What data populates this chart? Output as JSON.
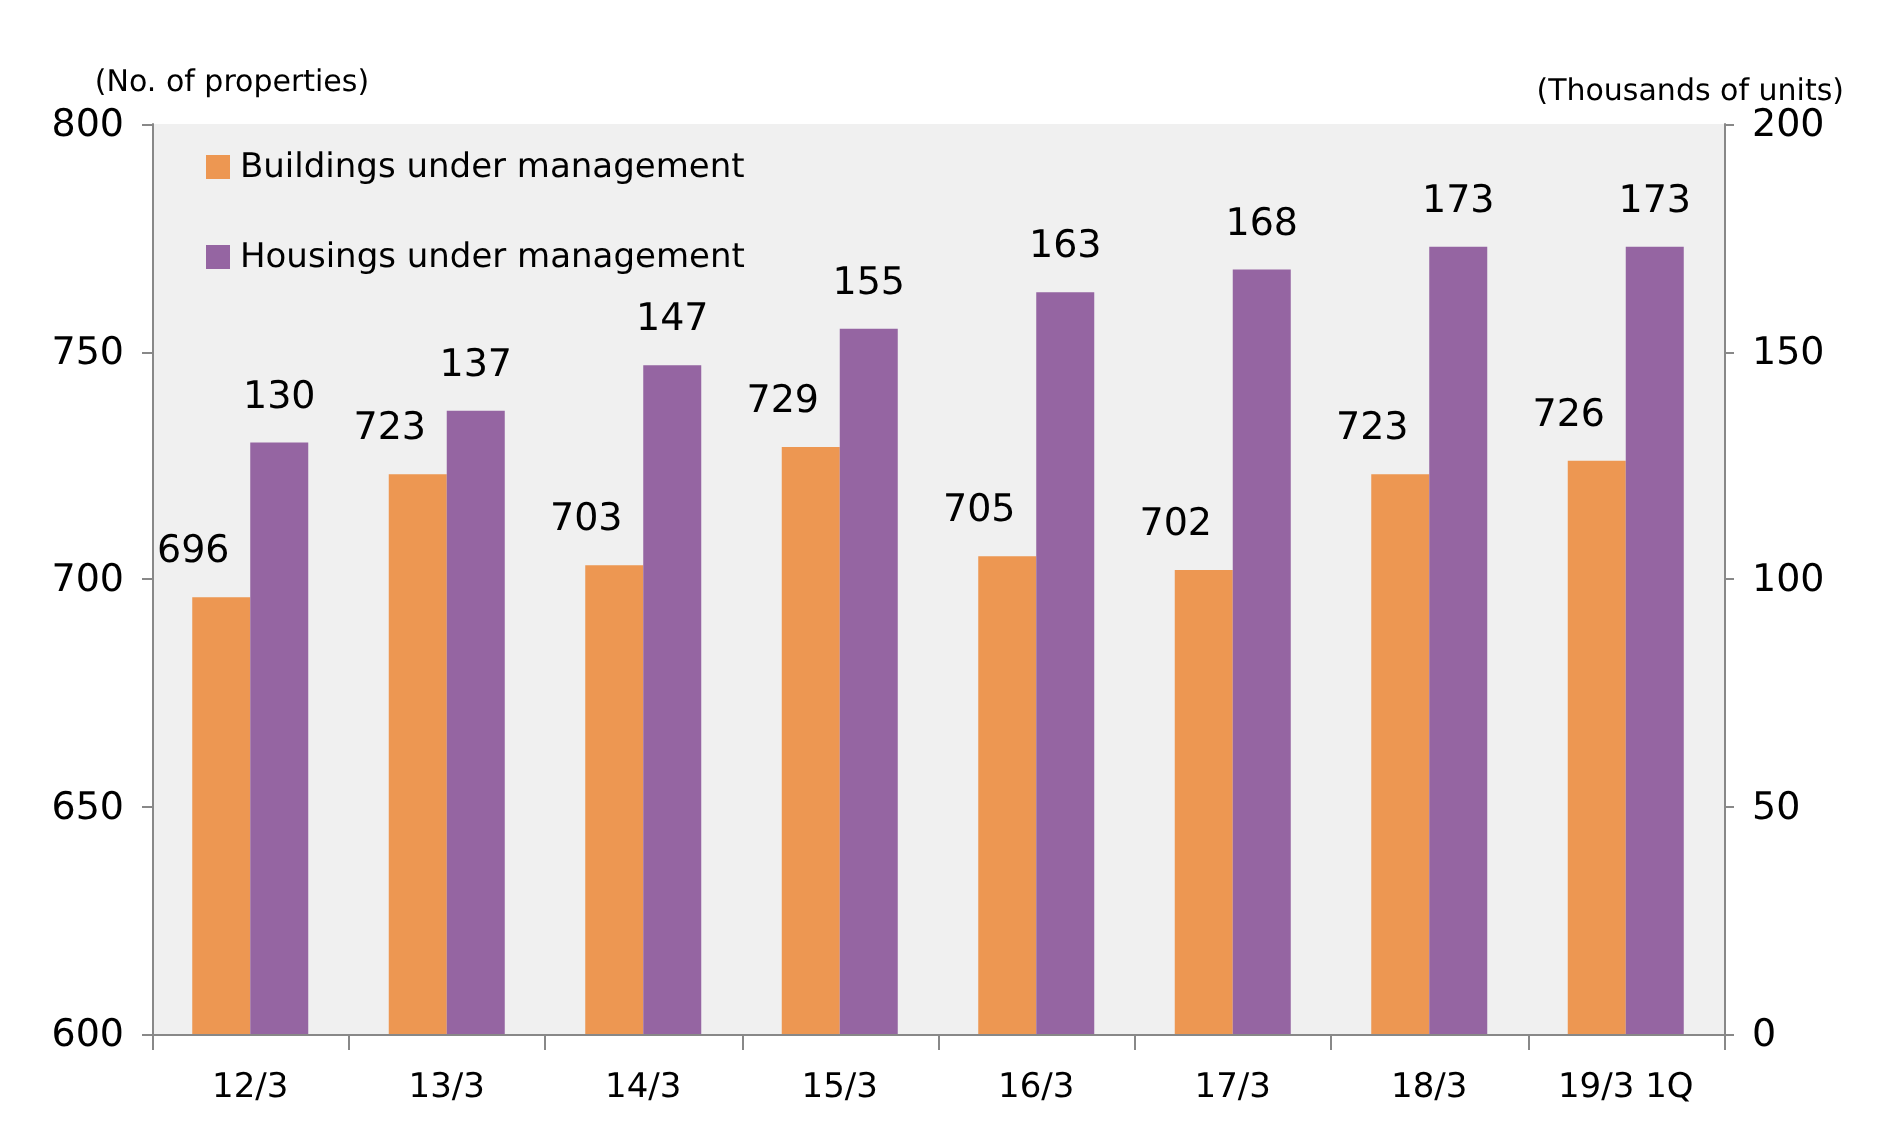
{
  "chart_data": {
    "type": "bar",
    "ylabel": "(No. of properties)",
    "y2label": "(Thousands of units)",
    "categories": [
      "12/3",
      "13/3",
      "14/3",
      "15/3",
      "16/3",
      "17/3",
      "18/3",
      "19/3 1Q"
    ],
    "series": [
      {
        "name": "Buildings under management",
        "color": "#ed9752",
        "values": [
          696,
          723,
          703,
          729,
          705,
          702,
          723,
          726
        ]
      },
      {
        "name": "Housings under management",
        "color": "#9565a2",
        "axis": "y2",
        "values": [
          130,
          137,
          147,
          155,
          163,
          168,
          173,
          173
        ]
      }
    ],
    "ylim": [
      600,
      800
    ],
    "yticks": [
      600,
      650,
      700,
      750,
      800
    ],
    "y2lim": [
      0,
      200
    ],
    "y2ticks": [
      0,
      50,
      100,
      150,
      200
    ],
    "data_labels": true,
    "grid": false,
    "legend": "top left"
  }
}
